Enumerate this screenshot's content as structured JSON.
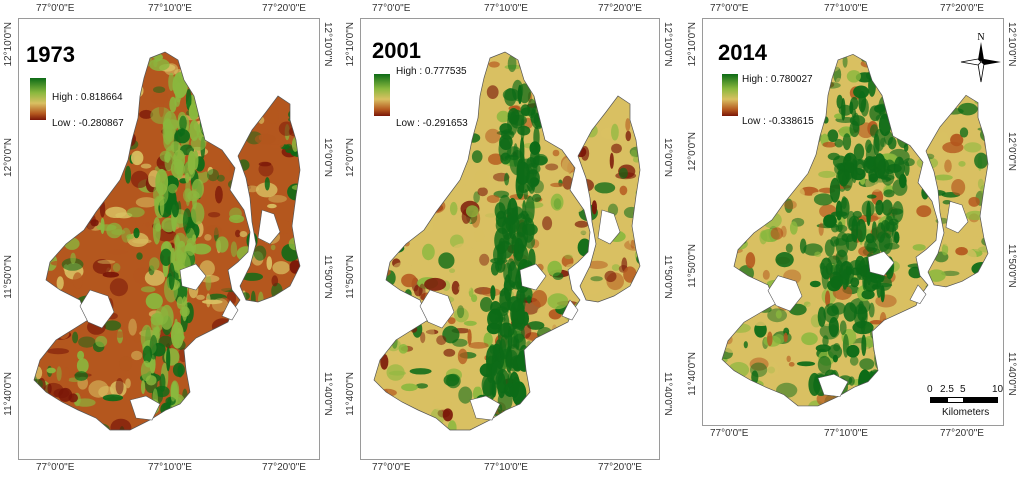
{
  "colors": {
    "high": "#0d6b17",
    "mid_high": "#8ab83e",
    "mid": "#d9c062",
    "mid_low": "#b4571e",
    "low": "#7a1608"
  },
  "axes": {
    "top_ticks": [
      "77°0'0\"E",
      "77°10'0\"E",
      "77°20'0\"E"
    ],
    "bottom_ticks": [
      "77°0'0\"E",
      "77°10'0\"E",
      "77°20'0\"E"
    ],
    "left_ticks": [
      "12°10'0\"N",
      "12°0'0\"N",
      "11°50'0\"N",
      "11°40'0\"N"
    ],
    "right_ticks": [
      "12°10'0\"N",
      "12°0'0\"N",
      "11°50'0\"N",
      "11°40'0\"N"
    ]
  },
  "panels": [
    {
      "year": "1973",
      "high_label": "High : 0.818664",
      "low_label": "Low : -0.280867"
    },
    {
      "year": "2001",
      "high_label": "High : 0.777535",
      "low_label": "Low : -0.291653"
    },
    {
      "year": "2014",
      "high_label": "High : 0.780027",
      "low_label": "Low : -0.338615"
    }
  ],
  "north_arrow": {
    "label": "N",
    "icon": "north-arrow-icon"
  },
  "scale_bar": {
    "ticks": [
      "0",
      "2.5",
      "5",
      "10"
    ],
    "unit": "Kilometers"
  }
}
